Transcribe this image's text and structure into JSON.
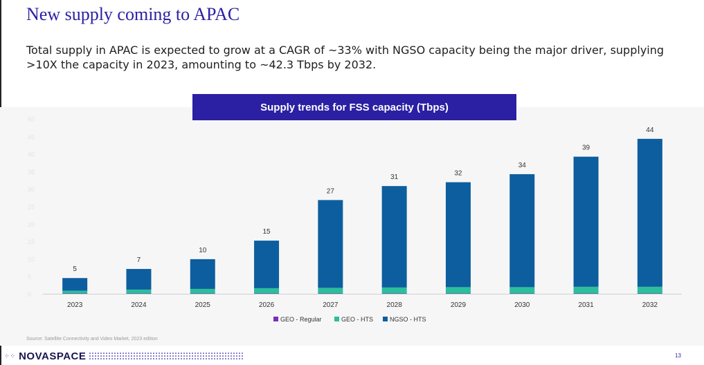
{
  "slide": {
    "title": "New supply coming to APAC",
    "subtitle": "Total supply in APAC is expected to grow at a CAGR of ~33% with NGSO capacity being the major driver, supplying >10X the capacity in 2023, amounting to ~42.3 Tbps by 2032.",
    "source": "Source: Satellite Connectivity and Video Market, 2023 edition",
    "logo_text": "NOVASPACE",
    "page_number": "13"
  },
  "colors": {
    "brand": "#2b1fa3",
    "geo_regular": "#7b2fb8",
    "geo_hts": "#2bbf9b",
    "ngso_hts": "#0d5e9e"
  },
  "chart_data": {
    "type": "bar",
    "stacked": true,
    "title": "Supply trends for FSS capacity (Tbps)",
    "categories": [
      "2023",
      "2024",
      "2025",
      "2026",
      "2027",
      "2028",
      "2029",
      "2030",
      "2031",
      "2032"
    ],
    "series": [
      {
        "name": "GEO - Regular",
        "values": [
          0.1,
          0.1,
          0.1,
          0.1,
          0.1,
          0.1,
          0.1,
          0.1,
          0.1,
          0.1
        ]
      },
      {
        "name": "GEO - HTS",
        "values": [
          0.8,
          1.1,
          1.3,
          1.5,
          1.6,
          1.7,
          1.8,
          1.8,
          1.9,
          1.9
        ]
      },
      {
        "name": "NGSO - HTS",
        "values": [
          3.6,
          5.9,
          8.5,
          13.6,
          25.1,
          29.0,
          30.0,
          32.3,
          37.2,
          42.3
        ]
      }
    ],
    "totals": [
      "5",
      "7",
      "10",
      "15",
      "27",
      "31",
      "32",
      "34",
      "39",
      "44"
    ],
    "y_ticks": [
      "0",
      "5",
      "10",
      "15",
      "20",
      "25",
      "30",
      "35",
      "40",
      "45",
      "50"
    ],
    "ylim": [
      0,
      50
    ],
    "grid": false,
    "legend_position": "bottom"
  }
}
